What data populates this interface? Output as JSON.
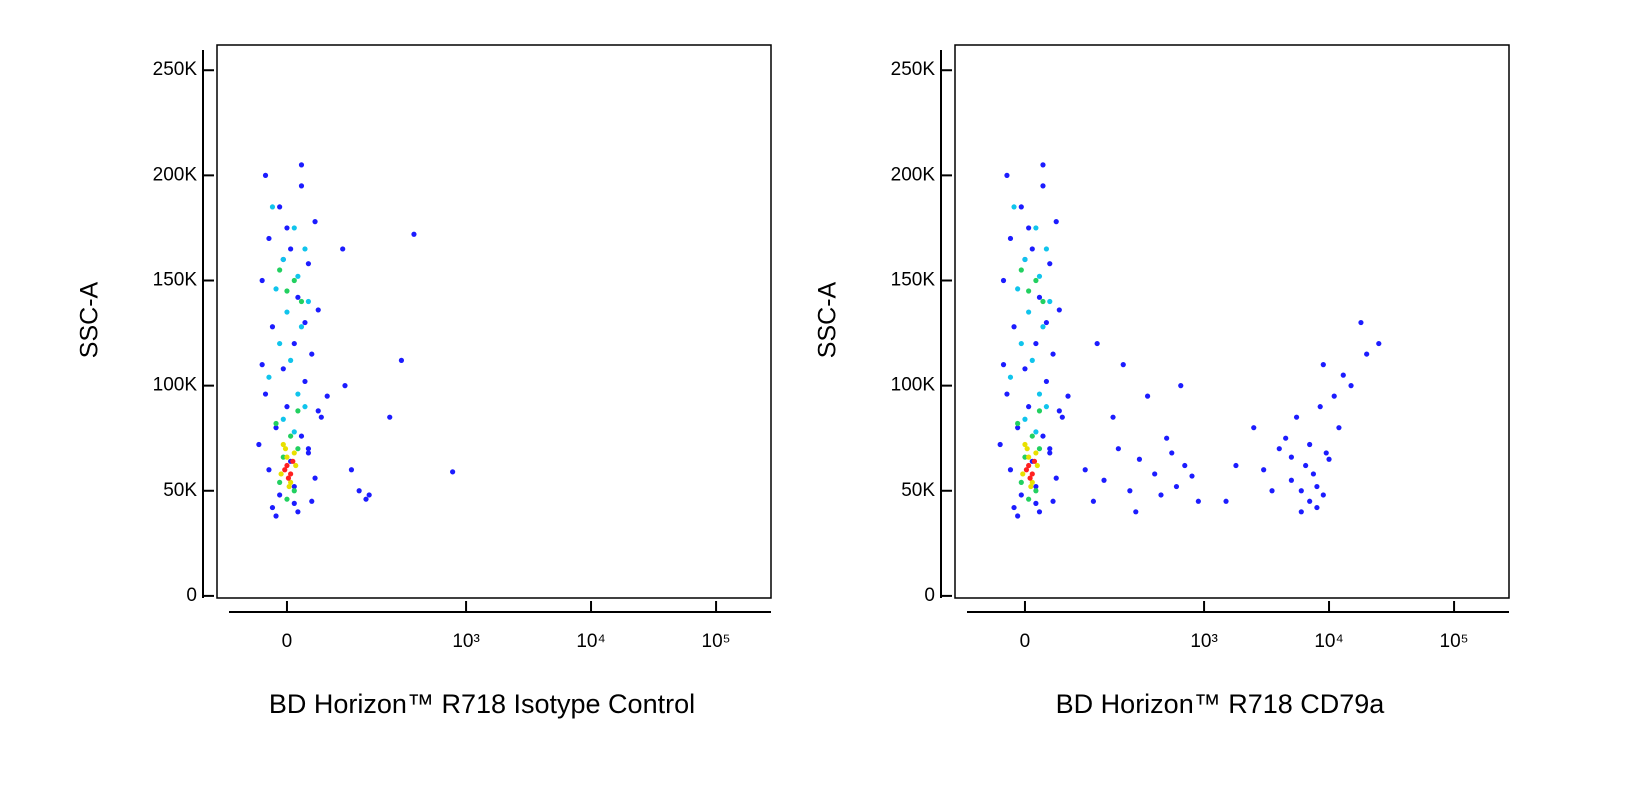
{
  "chart_data": [
    {
      "type": "scatter",
      "xlabel": "BD Horizon™ R718 Isotype Control",
      "ylabel": "SSC-A",
      "xscale": "biexponential",
      "xlim": [
        -124,
        275000
      ],
      "ylim": [
        -1000,
        262000
      ],
      "xticks": [
        0,
        {
          "value": 1000,
          "label": "10³"
        },
        {
          "value": 10000,
          "label": "10⁴"
        },
        {
          "value": 100000,
          "label": "10⁵"
        }
      ],
      "yticks": [
        0,
        {
          "value": 50000,
          "label": "50K"
        },
        {
          "value": 100000,
          "label": "100K"
        },
        {
          "value": 150000,
          "label": "150K"
        },
        {
          "value": 200000,
          "label": "200K"
        },
        {
          "value": 250000,
          "label": "250K"
        }
      ],
      "series": [
        {
          "color": "#1c1cff",
          "x": [
            -30,
            20,
            -10,
            40,
            -25,
            5,
            30,
            -35,
            15,
            45,
            -20,
            10,
            35,
            -5,
            25,
            -30,
            0,
            50,
            -15,
            20,
            -40,
            30,
            5,
            -25,
            40,
            10,
            -10,
            35,
            -20,
            15,
            60,
            -35,
            25,
            0,
            45,
            -15,
            20,
            -5,
            30,
            10,
            90,
            110,
            160,
            240,
            300,
            380,
            780,
            130,
            150,
            95
          ],
          "y": [
            200000,
            195000,
            185000,
            178000,
            170000,
            165000,
            158000,
            150000,
            142000,
            136000,
            128000,
            120000,
            115000,
            108000,
            102000,
            96000,
            90000,
            85000,
            80000,
            76000,
            72000,
            68000,
            64000,
            60000,
            56000,
            52000,
            48000,
            45000,
            42000,
            40000,
            95000,
            110000,
            130000,
            175000,
            88000,
            38000,
            205000,
            160000,
            70000,
            44000,
            165000,
            60000,
            48000,
            85000,
            112000,
            172000,
            59000,
            50000,
            46000,
            100000
          ]
        },
        {
          "color": "#10c4ec",
          "x": [
            -20,
            10,
            25,
            -5,
            15,
            -15,
            30,
            0,
            20,
            -10,
            5,
            -25,
            15,
            25,
            -5,
            10
          ],
          "y": [
            185000,
            175000,
            165000,
            160000,
            152000,
            146000,
            140000,
            135000,
            128000,
            120000,
            112000,
            104000,
            96000,
            90000,
            84000,
            78000
          ]
        },
        {
          "color": "#22d060",
          "x": [
            -10,
            10,
            0,
            20,
            -15,
            5,
            15,
            -5,
            10,
            0,
            15,
            -10
          ],
          "y": [
            155000,
            150000,
            145000,
            140000,
            82000,
            76000,
            70000,
            66000,
            50000,
            46000,
            88000,
            54000
          ]
        },
        {
          "color": "#e8e000",
          "x": [
            -5,
            10,
            0,
            12,
            -8,
            5,
            3,
            -2
          ],
          "y": [
            72000,
            68000,
            66000,
            62000,
            58000,
            54000,
            52000,
            70000
          ]
        },
        {
          "color": "#ff2020",
          "x": [
            0,
            5,
            -3,
            2,
            8
          ],
          "y": [
            62000,
            58000,
            60000,
            56000,
            64000
          ]
        }
      ]
    },
    {
      "type": "scatter",
      "xlabel": "BD Horizon™ R718  CD79a",
      "ylabel": "SSC-A",
      "xscale": "biexponential",
      "xlim": [
        -124,
        275000
      ],
      "ylim": [
        -1000,
        262000
      ],
      "xticks": [
        0,
        {
          "value": 1000,
          "label": "10³"
        },
        {
          "value": 10000,
          "label": "10⁴"
        },
        {
          "value": 100000,
          "label": "10⁵"
        }
      ],
      "yticks": [
        0,
        {
          "value": 50000,
          "label": "50K"
        },
        {
          "value": 100000,
          "label": "100K"
        },
        {
          "value": 150000,
          "label": "150K"
        },
        {
          "value": 200000,
          "label": "200K"
        },
        {
          "value": 250000,
          "label": "250K"
        }
      ],
      "series": [
        {
          "color": "#1c1cff",
          "x": [
            -25,
            25,
            -5,
            45,
            -20,
            10,
            35,
            -30,
            20,
            50,
            -15,
            15,
            40,
            0,
            30,
            -25,
            5,
            55,
            -10,
            25,
            -35,
            35,
            10,
            -20,
            45,
            15,
            -5,
            40,
            -15,
            20,
            65,
            -30,
            30,
            5,
            50,
            -10,
            25,
            0,
            35,
            15,
            100,
            150,
            200,
            250,
            300,
            400,
            500,
            600,
            700,
            120,
            180,
            350,
            450,
            550,
            650,
            800,
            900,
            220,
            280,
            130,
            3000,
            4000,
            5000,
            6000,
            7000,
            8000,
            9000,
            10000,
            12000,
            15000,
            20000,
            25000,
            4500,
            5500,
            6500,
            7500,
            8500,
            9500,
            11000,
            3500,
            6000,
            7000,
            8000,
            13000,
            18000,
            2500,
            1500,
            1800,
            5000,
            9000
          ],
          "y": [
            200000,
            195000,
            185000,
            178000,
            170000,
            165000,
            158000,
            150000,
            142000,
            136000,
            128000,
            120000,
            115000,
            108000,
            102000,
            96000,
            90000,
            85000,
            80000,
            76000,
            72000,
            68000,
            64000,
            60000,
            56000,
            52000,
            48000,
            45000,
            42000,
            40000,
            95000,
            110000,
            130000,
            175000,
            88000,
            38000,
            205000,
            160000,
            70000,
            44000,
            60000,
            55000,
            70000,
            50000,
            65000,
            58000,
            75000,
            52000,
            62000,
            45000,
            85000,
            95000,
            48000,
            68000,
            100000,
            57000,
            45000,
            110000,
            40000,
            120000,
            60000,
            70000,
            55000,
            50000,
            45000,
            52000,
            48000,
            65000,
            80000,
            100000,
            115000,
            120000,
            75000,
            85000,
            62000,
            58000,
            90000,
            68000,
            95000,
            50000,
            40000,
            72000,
            42000,
            105000,
            130000,
            80000,
            45000,
            62000,
            66000,
            110000
          ]
        },
        {
          "color": "#10c4ec",
          "x": [
            -15,
            15,
            30,
            0,
            20,
            -10,
            35,
            5,
            25,
            -5,
            10,
            -20,
            20,
            30,
            0,
            15
          ],
          "y": [
            185000,
            175000,
            165000,
            160000,
            152000,
            146000,
            140000,
            135000,
            128000,
            120000,
            112000,
            104000,
            96000,
            90000,
            84000,
            78000
          ]
        },
        {
          "color": "#22d060",
          "x": [
            -5,
            15,
            5,
            25,
            -10,
            10,
            20,
            0,
            15,
            5,
            20,
            -5
          ],
          "y": [
            155000,
            150000,
            145000,
            140000,
            82000,
            76000,
            70000,
            66000,
            50000,
            46000,
            88000,
            54000
          ]
        },
        {
          "color": "#e8e000",
          "x": [
            0,
            15,
            5,
            17,
            -3,
            10,
            8,
            3
          ],
          "y": [
            72000,
            68000,
            66000,
            62000,
            58000,
            54000,
            52000,
            70000
          ]
        },
        {
          "color": "#ff2020",
          "x": [
            5,
            10,
            2,
            7,
            13
          ],
          "y": [
            62000,
            58000,
            60000,
            56000,
            64000
          ]
        }
      ]
    }
  ]
}
